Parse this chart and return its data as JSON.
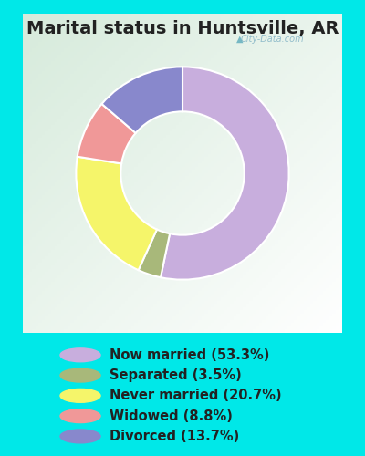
{
  "title": "Marital status in Huntsville, AR",
  "slices": [
    53.3,
    3.5,
    20.7,
    8.8,
    13.7
  ],
  "labels": [
    "Now married (53.3%)",
    "Separated (3.5%)",
    "Never married (20.7%)",
    "Widowed (8.8%)",
    "Divorced (13.7%)"
  ],
  "colors": [
    "#c8aedd",
    "#a8b87a",
    "#f5f56a",
    "#f09898",
    "#8888cc"
  ],
  "bg_color_outer": "#00e8e8",
  "bg_color_inner_tl": "#d8ede0",
  "bg_color_inner_br": "#f0f8f0",
  "watermark": "City-Data.com",
  "title_fontsize": 14,
  "legend_fontsize": 10.5,
  "donut_width": 0.42,
  "start_angle": 90
}
